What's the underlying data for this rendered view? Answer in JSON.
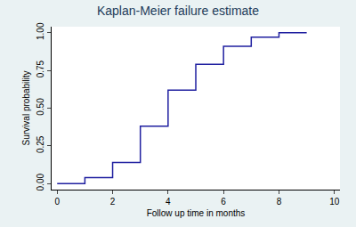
{
  "chart_data": {
    "type": "line",
    "title": "Kaplan-Meier failure estimate",
    "x_label": "Follow up time in months",
    "y_label": "Survival probability",
    "x": [
      0,
      1,
      2,
      3,
      4,
      5,
      6,
      7,
      8,
      9
    ],
    "values": [
      0,
      0.04,
      0.14,
      0.38,
      0.62,
      0.79,
      0.91,
      0.97,
      1.0,
      1.0
    ],
    "color": "#1f1fa0",
    "line_style": "step",
    "xlim": [
      -0.2,
      10.2
    ],
    "xticks": [
      0,
      2,
      4,
      6,
      8,
      10
    ],
    "ylim": [
      -0.04,
      1.04
    ],
    "yticks": [
      {
        "value": 0,
        "label": "0.00"
      },
      {
        "value": 0.25,
        "label": "0.25"
      },
      {
        "value": 0.5,
        "label": "0.50"
      },
      {
        "value": 0.75,
        "label": "0.75"
      },
      {
        "value": 1,
        "label": "1.00"
      }
    ],
    "grid": false
  }
}
